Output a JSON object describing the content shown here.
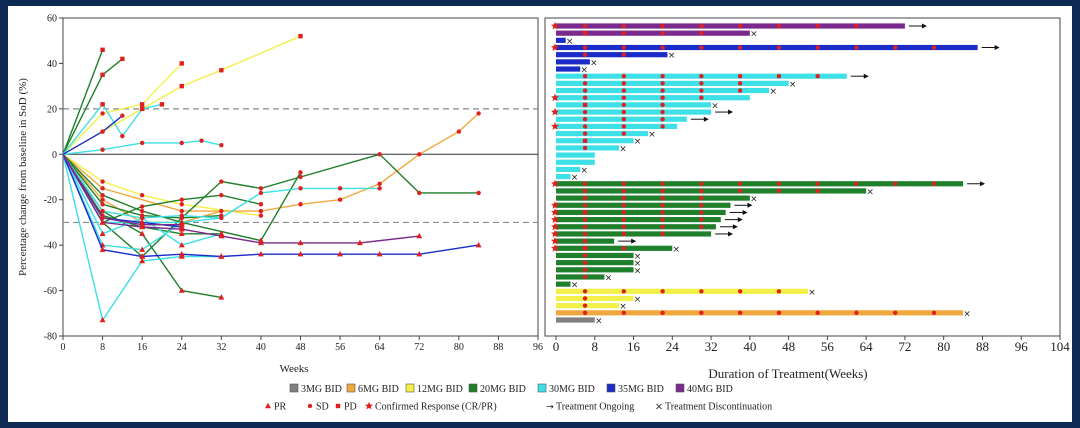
{
  "chart_data": [
    {
      "type": "line",
      "panel": "spider",
      "xlabel": "Weeks",
      "ylabel": "Percentage change from baseline in SoD (%)",
      "xlim": [
        0,
        96
      ],
      "ylim": [
        -80,
        60
      ],
      "xticks": [
        0,
        8,
        16,
        24,
        32,
        40,
        48,
        56,
        64,
        72,
        80,
        88,
        96
      ],
      "yticks": [
        -80,
        -60,
        -40,
        -20,
        0,
        20,
        40,
        60
      ],
      "reference_lines": [
        20,
        0,
        -30
      ],
      "series": [
        {
          "cohort": "12MG BID",
          "points": [
            [
              0,
              0
            ],
            [
              8,
              10
            ],
            [
              16,
              20
            ],
            [
              24,
              30
            ],
            [
              32,
              37
            ],
            [
              48,
              52
            ]
          ]
        },
        {
          "cohort": "12MG BID",
          "points": [
            [
              0,
              0
            ],
            [
              8,
              18
            ],
            [
              16,
              22
            ],
            [
              24,
              40
            ]
          ]
        },
        {
          "cohort": "12MG BID",
          "points": [
            [
              0,
              0
            ],
            [
              8,
              -12
            ],
            [
              16,
              -18
            ],
            [
              24,
              -22
            ],
            [
              40,
              -27
            ]
          ]
        },
        {
          "cohort": "6MG BID",
          "points": [
            [
              0,
              0
            ],
            [
              8,
              -15
            ],
            [
              24,
              -25
            ],
            [
              40,
              -25
            ],
            [
              48,
              -22
            ],
            [
              56,
              -20
            ],
            [
              64,
              -13
            ],
            [
              72,
              0
            ],
            [
              80,
              10
            ],
            [
              84,
              18
            ]
          ]
        },
        {
          "cohort": "6MG BID",
          "points": [
            [
              0,
              0
            ],
            [
              8,
              -20
            ],
            [
              16,
              -30
            ],
            [
              24,
              -30
            ],
            [
              32,
              -25
            ]
          ]
        },
        {
          "cohort": "20MG BID",
          "points": [
            [
              0,
              0
            ],
            [
              8,
              35
            ],
            [
              12,
              42
            ]
          ]
        },
        {
          "cohort": "20MG BID",
          "points": [
            [
              0,
              0
            ],
            [
              8,
              46
            ]
          ]
        },
        {
          "cohort": "20MG BID",
          "points": [
            [
              0,
              0
            ],
            [
              8,
              -25
            ],
            [
              16,
              -35
            ],
            [
              24,
              -60
            ],
            [
              32,
              -63
            ]
          ]
        },
        {
          "cohort": "20MG BID",
          "points": [
            [
              0,
              0
            ],
            [
              8,
              -30
            ],
            [
              16,
              -45
            ],
            [
              24,
              -28
            ],
            [
              32,
              -12
            ],
            [
              40,
              -15
            ],
            [
              48,
              -10
            ],
            [
              64,
              0
            ],
            [
              72,
              -17
            ],
            [
              84,
              -17
            ]
          ]
        },
        {
          "cohort": "20MG BID",
          "points": [
            [
              0,
              0
            ],
            [
              8,
              -18
            ],
            [
              16,
              -25
            ],
            [
              24,
              -30
            ],
            [
              40,
              -38
            ],
            [
              48,
              -8
            ]
          ]
        },
        {
          "cohort": "20MG BID",
          "points": [
            [
              0,
              0
            ],
            [
              8,
              -27
            ],
            [
              16,
              -32
            ],
            [
              24,
              -35
            ],
            [
              32,
              -35
            ]
          ]
        },
        {
          "cohort": "20MG BID",
          "points": [
            [
              0,
              0
            ],
            [
              8,
              -22
            ],
            [
              16,
              -27
            ],
            [
              24,
              -28
            ],
            [
              32,
              -27
            ]
          ]
        },
        {
          "cohort": "20MG BID",
          "points": [
            [
              0,
              0
            ],
            [
              8,
              -30
            ],
            [
              16,
              -23
            ],
            [
              24,
              -20
            ],
            [
              32,
              -18
            ],
            [
              40,
              -22
            ]
          ]
        },
        {
          "cohort": "30MG BID",
          "points": [
            [
              0,
              0
            ],
            [
              8,
              -30
            ],
            [
              16,
              -30
            ],
            [
              24,
              -30
            ],
            [
              32,
              -28
            ],
            [
              40,
              -17
            ],
            [
              48,
              -15
            ],
            [
              56,
              -15
            ],
            [
              64,
              -15
            ]
          ]
        },
        {
          "cohort": "30MG BID",
          "points": [
            [
              0,
              0
            ],
            [
              8,
              -73
            ],
            [
              16,
              -47
            ],
            [
              24,
              -45
            ],
            [
              32,
              -45
            ]
          ]
        },
        {
          "cohort": "30MG BID",
          "points": [
            [
              0,
              0
            ],
            [
              8,
              -40
            ],
            [
              16,
              -42
            ],
            [
              24,
              -30
            ]
          ]
        },
        {
          "cohort": "30MG BID",
          "points": [
            [
              0,
              0
            ],
            [
              8,
              2
            ],
            [
              16,
              5
            ],
            [
              24,
              5
            ],
            [
              28,
              6
            ],
            [
              32,
              4
            ]
          ]
        },
        {
          "cohort": "30MG BID",
          "points": [
            [
              0,
              0
            ],
            [
              8,
              -25
            ],
            [
              16,
              -28
            ],
            [
              24,
              -27
            ],
            [
              32,
              -28
            ]
          ]
        },
        {
          "cohort": "30MG BID",
          "points": [
            [
              0,
              0
            ],
            [
              8,
              22
            ],
            [
              12,
              8
            ],
            [
              16,
              20
            ],
            [
              20,
              22
            ]
          ]
        },
        {
          "cohort": "30MG BID",
          "points": [
            [
              0,
              0
            ],
            [
              8,
              -35
            ],
            [
              16,
              -28
            ],
            [
              24,
              -40
            ],
            [
              32,
              -35
            ]
          ]
        },
        {
          "cohort": "35MG BID",
          "points": [
            [
              0,
              0
            ],
            [
              8,
              -42
            ],
            [
              16,
              -45
            ],
            [
              24,
              -44
            ],
            [
              32,
              -45
            ],
            [
              40,
              -44
            ],
            [
              48,
              -44
            ],
            [
              56,
              -44
            ],
            [
              64,
              -44
            ],
            [
              72,
              -44
            ],
            [
              84,
              -40
            ]
          ]
        },
        {
          "cohort": "35MG BID",
          "points": [
            [
              0,
              0
            ],
            [
              8,
              10
            ],
            [
              12,
              17
            ]
          ]
        },
        {
          "cohort": "35MG BID",
          "points": [
            [
              0,
              0
            ],
            [
              8,
              -28
            ],
            [
              16,
              -30
            ],
            [
              24,
              -32
            ]
          ]
        },
        {
          "cohort": "40MG BID",
          "points": [
            [
              0,
              0
            ],
            [
              8,
              -30
            ],
            [
              16,
              -32
            ],
            [
              24,
              -33
            ],
            [
              32,
              -36
            ],
            [
              40,
              -39
            ],
            [
              48,
              -39
            ],
            [
              60,
              -39
            ],
            [
              72,
              -36
            ]
          ]
        },
        {
          "cohort": "40MG BID",
          "points": [
            [
              0,
              0
            ],
            [
              8,
              -28
            ],
            [
              16,
              -31
            ],
            [
              24,
              -31
            ]
          ]
        }
      ]
    },
    {
      "type": "bar",
      "panel": "swimmer",
      "xlabel": "Duration of Treatment(Weeks)",
      "xlim": [
        0,
        104
      ],
      "xticks": [
        0,
        8,
        16,
        24,
        32,
        40,
        48,
        56,
        64,
        72,
        80,
        88,
        96,
        104
      ],
      "bars": [
        {
          "cohort": "40MG BID",
          "weeks": 72,
          "end": "ongoing",
          "cr": true
        },
        {
          "cohort": "40MG BID",
          "weeks": 40,
          "end": "discontinued"
        },
        {
          "cohort": "35MG BID",
          "weeks": 2,
          "end": "discontinued"
        },
        {
          "cohort": "35MG BID",
          "weeks": 87,
          "end": "ongoing",
          "cr": true
        },
        {
          "cohort": "35MG BID",
          "weeks": 23,
          "end": "discontinued"
        },
        {
          "cohort": "35MG BID",
          "weeks": 7,
          "end": "discontinued"
        },
        {
          "cohort": "35MG BID",
          "weeks": 5,
          "end": "discontinued"
        },
        {
          "cohort": "30MG BID",
          "weeks": 60,
          "end": "ongoing"
        },
        {
          "cohort": "30MG BID",
          "weeks": 48,
          "end": "discontinued"
        },
        {
          "cohort": "30MG BID",
          "weeks": 44,
          "end": "discontinued"
        },
        {
          "cohort": "30MG BID",
          "weeks": 40,
          "end": "none",
          "cr": true
        },
        {
          "cohort": "30MG BID",
          "weeks": 32,
          "end": "discontinued"
        },
        {
          "cohort": "30MG BID",
          "weeks": 32,
          "end": "ongoing",
          "cr": true
        },
        {
          "cohort": "30MG BID",
          "weeks": 27,
          "end": "ongoing"
        },
        {
          "cohort": "30MG BID",
          "weeks": 25,
          "end": "none",
          "cr": true
        },
        {
          "cohort": "30MG BID",
          "weeks": 19,
          "end": "discontinued"
        },
        {
          "cohort": "30MG BID",
          "weeks": 16,
          "end": "discontinued"
        },
        {
          "cohort": "30MG BID",
          "weeks": 13,
          "end": "discontinued"
        },
        {
          "cohort": "30MG BID",
          "weeks": 8,
          "end": "none"
        },
        {
          "cohort": "30MG BID",
          "weeks": 8,
          "end": "none"
        },
        {
          "cohort": "30MG BID",
          "weeks": 5,
          "end": "discontinued"
        },
        {
          "cohort": "30MG BID",
          "weeks": 3,
          "end": "discontinued"
        },
        {
          "cohort": "20MG BID",
          "weeks": 84,
          "end": "ongoing",
          "cr": true
        },
        {
          "cohort": "20MG BID",
          "weeks": 64,
          "end": "discontinued"
        },
        {
          "cohort": "20MG BID",
          "weeks": 40,
          "end": "discontinued"
        },
        {
          "cohort": "20MG BID",
          "weeks": 36,
          "end": "ongoing",
          "cr": true
        },
        {
          "cohort": "20MG BID",
          "weeks": 35,
          "end": "ongoing",
          "cr": true
        },
        {
          "cohort": "20MG BID",
          "weeks": 34,
          "end": "ongoing",
          "cr": true
        },
        {
          "cohort": "20MG BID",
          "weeks": 33,
          "end": "ongoing",
          "cr": true
        },
        {
          "cohort": "20MG BID",
          "weeks": 32,
          "end": "ongoing",
          "cr": true
        },
        {
          "cohort": "20MG BID",
          "weeks": 12,
          "end": "ongoing",
          "cr": true
        },
        {
          "cohort": "20MG BID",
          "weeks": 24,
          "end": "discontinued",
          "cr": true
        },
        {
          "cohort": "20MG BID",
          "weeks": 16,
          "end": "discontinued"
        },
        {
          "cohort": "20MG BID",
          "weeks": 16,
          "end": "discontinued"
        },
        {
          "cohort": "20MG BID",
          "weeks": 16,
          "end": "discontinued"
        },
        {
          "cohort": "20MG BID",
          "weeks": 10,
          "end": "discontinued"
        },
        {
          "cohort": "20MG BID",
          "weeks": 3,
          "end": "discontinued"
        },
        {
          "cohort": "12MG BID",
          "weeks": 52,
          "end": "discontinued"
        },
        {
          "cohort": "12MG BID",
          "weeks": 16,
          "end": "discontinued"
        },
        {
          "cohort": "12MG BID",
          "weeks": 13,
          "end": "discontinued"
        },
        {
          "cohort": "6MG BID",
          "weeks": 84,
          "end": "discontinued"
        },
        {
          "cohort": "3MG BID",
          "weeks": 8,
          "end": "discontinued"
        }
      ]
    }
  ],
  "colors": {
    "3MG BID": "#808080",
    "6MG BID": "#f0a83c",
    "12MG BID": "#f4f04a",
    "20MG BID": "#1f7f2a",
    "30MG BID": "#3ee0e8",
    "35MG BID": "#1c2cc9",
    "40MG BID": "#7a2a8c",
    "marker": "#e02020",
    "frame": "#0d2a55"
  },
  "legend": {
    "cohorts": [
      "3MG BID",
      "6MG BID",
      "12MG BID",
      "20MG BID",
      "30MG BID",
      "35MG BID",
      "40MG BID"
    ],
    "markers": [
      {
        "symbol": "▲",
        "label": "PR"
      },
      {
        "symbol": "●",
        "label": "SD"
      },
      {
        "symbol": "■",
        "label": "PD"
      },
      {
        "symbol": "★",
        "label": "Confirmed Response (CR/PR)"
      },
      {
        "symbol": "→",
        "label": "Treatment Ongoing"
      },
      {
        "symbol": "×",
        "label": "Treatment Discontinuation"
      }
    ]
  }
}
